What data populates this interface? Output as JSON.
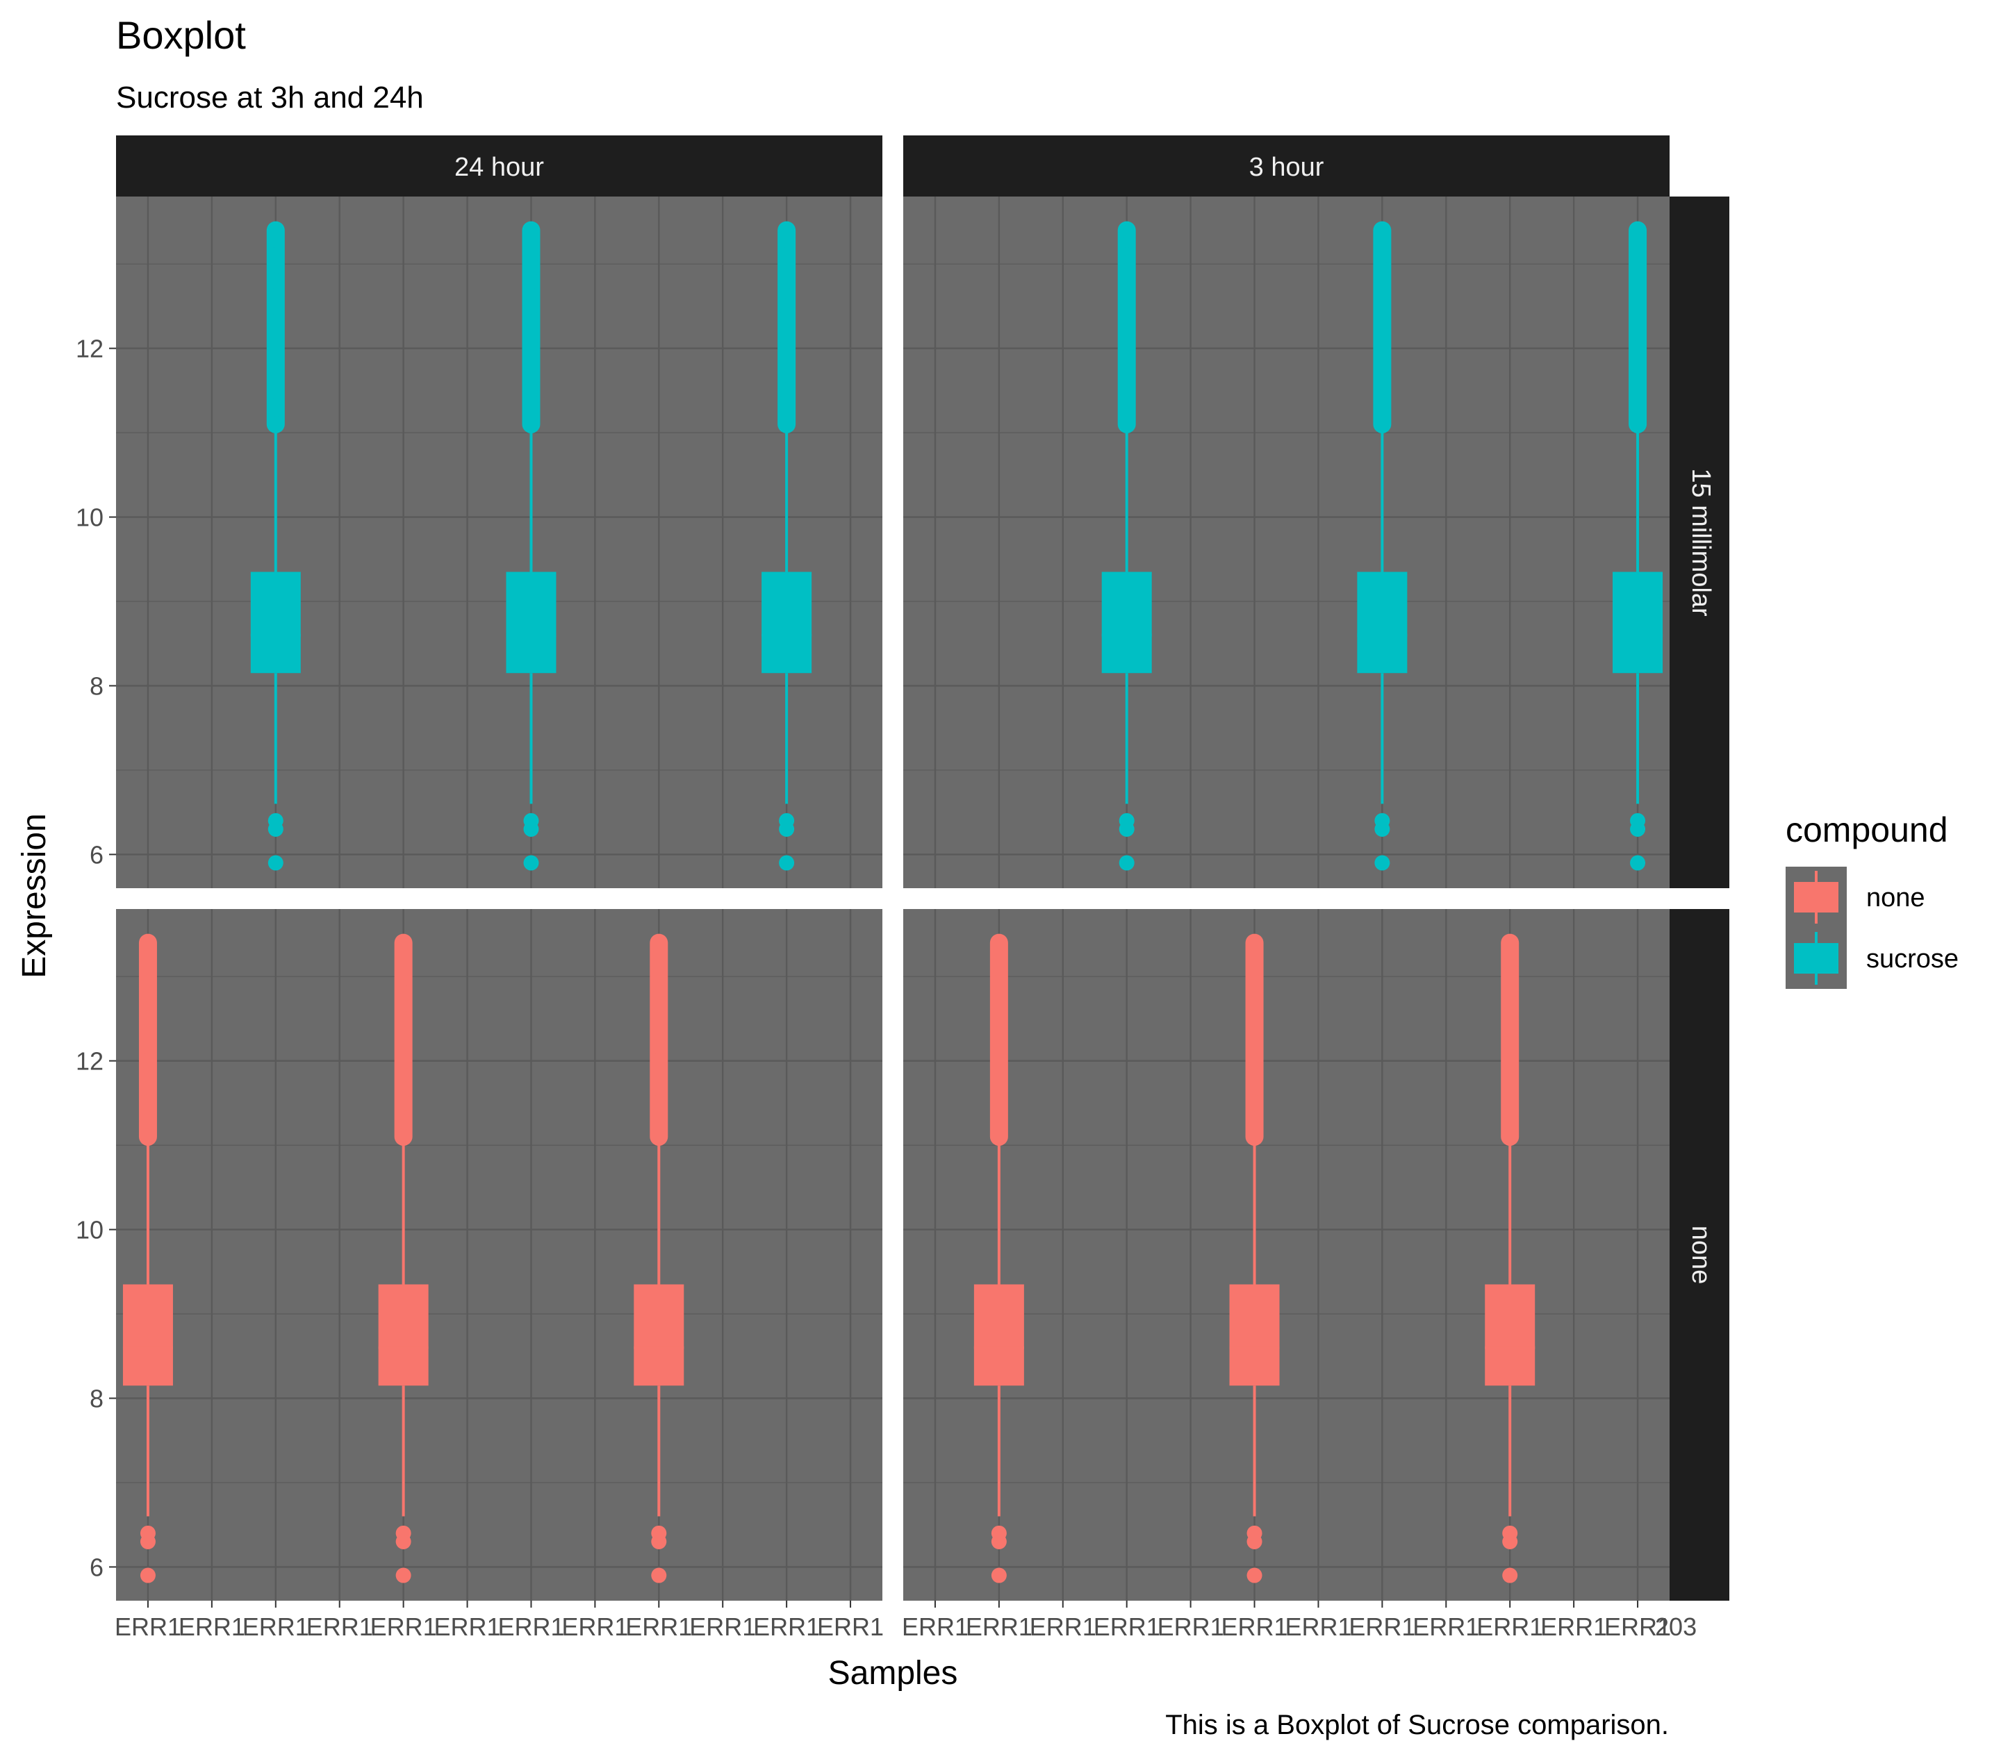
{
  "chart_data": {
    "type": "boxplot",
    "title": "Boxplot",
    "subtitle": "Sucrose at 3h and 24h",
    "xlabel": "Samples",
    "ylabel": "Expression",
    "caption": "This is a Boxplot of Sucrose comparison.",
    "ylim": [
      5.6,
      13.8
    ],
    "yticks": [
      6,
      8,
      10,
      12
    ],
    "facet_cols": [
      "24 hour",
      "3 hour"
    ],
    "facet_rows": [
      "15 millimolar",
      "none"
    ],
    "x_tick_labels": [
      "ERR1",
      "ERR1",
      "ERR1",
      "ERR1",
      "ERR1",
      "ERR1",
      "ERR1",
      "ERR1",
      "ERR1",
      "ERR1",
      "ERR1",
      "ERR1"
    ],
    "x_tick_tail": "203",
    "legend": {
      "title": "compound",
      "position": "right",
      "entries": [
        {
          "label": "none",
          "color": "#F8766D"
        },
        {
          "label": "sucrose",
          "color": "#00BFC4"
        }
      ]
    },
    "colors": {
      "panel": "#6b6b6b",
      "strip": "#1e1e1e",
      "grid": "#5a5a5a",
      "none": "#F8766D",
      "sucrose": "#00BFC4"
    },
    "panels": [
      {
        "col": "24 hour",
        "row": "15 millimolar",
        "compound": "sucrose",
        "boxes": [
          {
            "pos": 3,
            "whisker_low": 6.6,
            "q1": 8.15,
            "median": 8.6,
            "q3": 9.35,
            "whisker_high": 11.0,
            "outliers_low": [
              6.3,
              6.4,
              5.9
            ],
            "outliers_high": [
              11.1,
              11.5,
              12.0,
              12.5,
              12.8,
              13.1,
              13.4
            ]
          },
          {
            "pos": 7,
            "whisker_low": 6.6,
            "q1": 8.15,
            "median": 8.6,
            "q3": 9.35,
            "whisker_high": 11.0,
            "outliers_low": [
              6.3,
              6.4,
              5.9
            ],
            "outliers_high": [
              11.1,
              11.5,
              12.0,
              12.5,
              12.8,
              13.1,
              13.4
            ]
          },
          {
            "pos": 11,
            "whisker_low": 6.6,
            "q1": 8.15,
            "median": 8.6,
            "q3": 9.35,
            "whisker_high": 11.0,
            "outliers_low": [
              6.3,
              6.4,
              5.9
            ],
            "outliers_high": [
              11.1,
              11.5,
              12.0,
              12.5,
              12.8,
              13.1,
              13.4
            ]
          }
        ]
      },
      {
        "col": "3 hour",
        "row": "15 millimolar",
        "compound": "sucrose",
        "boxes": [
          {
            "pos": 4,
            "whisker_low": 6.6,
            "q1": 8.15,
            "median": 8.6,
            "q3": 9.35,
            "whisker_high": 11.0,
            "outliers_low": [
              6.3,
              6.4,
              5.9
            ],
            "outliers_high": [
              11.1,
              11.5,
              12.0,
              12.5,
              12.8,
              13.1,
              13.4
            ]
          },
          {
            "pos": 8,
            "whisker_low": 6.6,
            "q1": 8.15,
            "median": 8.6,
            "q3": 9.35,
            "whisker_high": 11.0,
            "outliers_low": [
              6.3,
              6.4,
              5.9
            ],
            "outliers_high": [
              11.1,
              11.5,
              12.0,
              12.5,
              12.8,
              13.1,
              13.4
            ]
          },
          {
            "pos": 12,
            "whisker_low": 6.6,
            "q1": 8.15,
            "median": 8.6,
            "q3": 9.35,
            "whisker_high": 11.0,
            "outliers_low": [
              6.3,
              6.4,
              5.9
            ],
            "outliers_high": [
              11.1,
              11.5,
              12.0,
              12.5,
              12.8,
              13.1,
              13.4
            ]
          }
        ]
      },
      {
        "col": "24 hour",
        "row": "none",
        "compound": "none",
        "boxes": [
          {
            "pos": 1,
            "whisker_low": 6.6,
            "q1": 8.15,
            "median": 8.6,
            "q3": 9.35,
            "whisker_high": 11.0,
            "outliers_low": [
              6.3,
              6.4,
              5.9
            ],
            "outliers_high": [
              11.1,
              11.5,
              12.0,
              12.5,
              12.8,
              13.1,
              13.4
            ]
          },
          {
            "pos": 5,
            "whisker_low": 6.6,
            "q1": 8.15,
            "median": 8.6,
            "q3": 9.35,
            "whisker_high": 11.0,
            "outliers_low": [
              6.3,
              6.4,
              5.9
            ],
            "outliers_high": [
              11.1,
              11.5,
              12.0,
              12.5,
              12.8,
              13.1,
              13.4
            ]
          },
          {
            "pos": 9,
            "whisker_low": 6.6,
            "q1": 8.15,
            "median": 8.6,
            "q3": 9.35,
            "whisker_high": 11.0,
            "outliers_low": [
              6.3,
              6.4,
              5.9
            ],
            "outliers_high": [
              11.1,
              11.5,
              12.0,
              12.5,
              12.8,
              13.1,
              13.4
            ]
          }
        ]
      },
      {
        "col": "3 hour",
        "row": "none",
        "compound": "none",
        "boxes": [
          {
            "pos": 2,
            "whisker_low": 6.6,
            "q1": 8.15,
            "median": 8.6,
            "q3": 9.35,
            "whisker_high": 11.0,
            "outliers_low": [
              6.3,
              6.4,
              5.9
            ],
            "outliers_high": [
              11.1,
              11.5,
              12.0,
              12.5,
              12.8,
              13.1,
              13.4
            ]
          },
          {
            "pos": 6,
            "whisker_low": 6.6,
            "q1": 8.15,
            "median": 8.6,
            "q3": 9.35,
            "whisker_high": 11.0,
            "outliers_low": [
              6.3,
              6.4,
              5.9
            ],
            "outliers_high": [
              11.1,
              11.5,
              12.0,
              12.5,
              12.8,
              13.1,
              13.4
            ]
          },
          {
            "pos": 10,
            "whisker_low": 6.6,
            "q1": 8.15,
            "median": 8.6,
            "q3": 9.35,
            "whisker_high": 11.0,
            "outliers_low": [
              6.3,
              6.4,
              5.9
            ],
            "outliers_high": [
              11.1,
              11.5,
              12.0,
              12.5,
              12.8,
              13.1,
              13.4
            ]
          }
        ]
      }
    ]
  }
}
